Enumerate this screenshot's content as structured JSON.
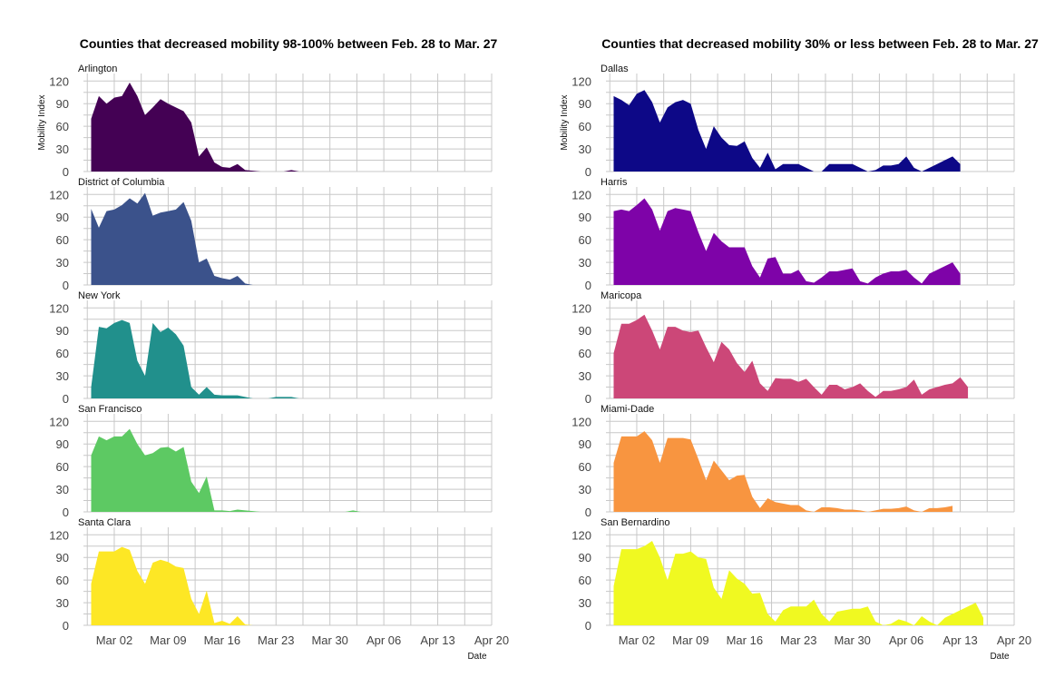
{
  "chart_data": [
    {
      "type": "area",
      "title": "Counties that decreased mobility 98-100% between Feb. 28 to Mar. 27",
      "xlabel": "Date",
      "ylabel": "Mobility Index",
      "xlim": [
        "2020-02-27",
        "2020-04-20"
      ],
      "ylim": [
        0,
        130
      ],
      "y_ticks": [
        0,
        30,
        60,
        90,
        120
      ],
      "x_ticks": [
        "2020-03-02",
        "2020-03-09",
        "2020-03-16",
        "2020-03-23",
        "2020-03-30",
        "2020-04-06",
        "2020-04-13",
        "2020-04-20"
      ],
      "x_tick_labels": [
        "Mar 02",
        "Mar 09",
        "Mar 16",
        "Mar 23",
        "Mar 30",
        "Apr 06",
        "Apr 13",
        "Apr 20"
      ],
      "start_date": "2020-02-28",
      "series": [
        {
          "name": "Arlington",
          "color": "#440154",
          "values": [
            70,
            100,
            90,
            98,
            100,
            118,
            100,
            75,
            85,
            96,
            90,
            85,
            80,
            65,
            20,
            32,
            12,
            6,
            5,
            10,
            2,
            1,
            0,
            0,
            0,
            0,
            2,
            0,
            0,
            0,
            0,
            0,
            0,
            0,
            0,
            0,
            0,
            0,
            0,
            0,
            0,
            0,
            0,
            0,
            0,
            0,
            0,
            0,
            0,
            0,
            0
          ]
        },
        {
          "name": "District of Columbia",
          "color": "#3b528b",
          "values": [
            101,
            76,
            98,
            100,
            106,
            115,
            108,
            122,
            92,
            96,
            98,
            100,
            110,
            85,
            30,
            35,
            12,
            9,
            7,
            12,
            2,
            0,
            0,
            0,
            0,
            0,
            0,
            0,
            0,
            0,
            0,
            0,
            0,
            0,
            0,
            0,
            0,
            0,
            0,
            0,
            0,
            0,
            0,
            0,
            0,
            0,
            0,
            0,
            0,
            0,
            0
          ]
        },
        {
          "name": "New York",
          "color": "#21908c",
          "values": [
            15,
            95,
            93,
            100,
            104,
            100,
            50,
            30,
            100,
            88,
            94,
            85,
            70,
            15,
            5,
            15,
            5,
            4,
            4,
            4,
            2,
            0,
            0,
            0,
            2,
            2,
            2,
            0,
            0,
            0,
            0,
            0,
            0,
            0,
            0,
            0,
            0,
            0,
            0,
            0,
            0,
            0,
            0,
            0,
            0,
            0,
            0,
            0,
            0,
            0,
            0
          ]
        },
        {
          "name": "San Francisco",
          "color": "#5dc963",
          "values": [
            75,
            100,
            95,
            100,
            100,
            110,
            90,
            75,
            78,
            85,
            86,
            80,
            86,
            40,
            25,
            47,
            2,
            2,
            1,
            3,
            2,
            1,
            0,
            0,
            0,
            0,
            0,
            0,
            0,
            0,
            0,
            0,
            0,
            0,
            2,
            0,
            0,
            0,
            0,
            0,
            0,
            0,
            0,
            0,
            0,
            0,
            0,
            0,
            0,
            0,
            0
          ]
        },
        {
          "name": "Santa Clara",
          "color": "#fde725",
          "values": [
            55,
            98,
            98,
            98,
            104,
            100,
            72,
            55,
            83,
            87,
            84,
            78,
            76,
            35,
            15,
            46,
            3,
            6,
            2,
            12,
            1,
            0,
            0,
            0,
            0,
            0,
            0,
            0,
            0,
            0,
            0,
            0,
            0,
            0,
            0,
            0,
            0,
            0,
            0,
            0,
            0,
            0,
            0,
            0,
            0,
            0,
            0,
            0,
            0,
            0,
            0
          ]
        }
      ]
    },
    {
      "type": "area",
      "title": "Counties that decreased mobility 30% or less between Feb. 28 to Mar. 27",
      "xlabel": "Date",
      "ylabel": "Mobility Index",
      "xlim": [
        "2020-02-27",
        "2020-04-20"
      ],
      "ylim": [
        0,
        130
      ],
      "y_ticks": [
        0,
        30,
        60,
        90,
        120
      ],
      "x_ticks": [
        "2020-03-02",
        "2020-03-09",
        "2020-03-16",
        "2020-03-23",
        "2020-03-30",
        "2020-04-06",
        "2020-04-13",
        "2020-04-20"
      ],
      "x_tick_labels": [
        "Mar 02",
        "Mar 09",
        "Mar 16",
        "Mar 23",
        "Mar 30",
        "Apr 06",
        "Apr 13",
        "Apr 20"
      ],
      "start_date": "2020-02-28",
      "series": [
        {
          "name": "Dallas",
          "color": "#0d0887",
          "values": [
            100,
            95,
            88,
            103,
            108,
            92,
            65,
            85,
            92,
            95,
            90,
            55,
            30,
            60,
            45,
            35,
            34,
            40,
            18,
            5,
            25,
            3,
            10,
            10,
            10,
            5,
            0,
            0,
            10,
            10,
            10,
            10,
            5,
            0,
            2,
            8,
            8,
            10,
            20,
            5,
            0,
            5,
            10,
            15,
            20,
            10
          ]
        },
        {
          "name": "Harris",
          "color": "#7e03a8",
          "values": [
            98,
            100,
            98,
            106,
            115,
            100,
            72,
            98,
            102,
            100,
            98,
            70,
            45,
            69,
            58,
            50,
            50,
            50,
            25,
            10,
            35,
            37,
            15,
            15,
            20,
            5,
            3,
            10,
            18,
            18,
            20,
            22,
            5,
            2,
            10,
            15,
            18,
            18,
            20,
            10,
            2,
            15,
            20,
            25,
            30,
            15
          ]
        },
        {
          "name": "Maricopa",
          "color": "#cc4778",
          "values": [
            60,
            99,
            99,
            104,
            111,
            90,
            65,
            95,
            95,
            90,
            88,
            90,
            68,
            48,
            75,
            65,
            47,
            35,
            50,
            20,
            10,
            27,
            26,
            26,
            22,
            26,
            15,
            5,
            18,
            18,
            12,
            15,
            20,
            10,
            2,
            10,
            10,
            12,
            15,
            25,
            5,
            12,
            15,
            18,
            20,
            28,
            15
          ]
        },
        {
          "name": "Miami-Dade",
          "color": "#f89540",
          "values": [
            65,
            100,
            100,
            100,
            107,
            95,
            65,
            98,
            98,
            98,
            96,
            70,
            42,
            68,
            55,
            42,
            48,
            49,
            20,
            5,
            18,
            13,
            11,
            9,
            9,
            2,
            0,
            6,
            6,
            5,
            3,
            3,
            2,
            0,
            2,
            4,
            4,
            5,
            7,
            2,
            0,
            5,
            5,
            6,
            8
          ]
        },
        {
          "name": "San Bernardino",
          "color": "#f0f921",
          "values": [
            52,
            101,
            101,
            101,
            105,
            112,
            90,
            60,
            95,
            95,
            98,
            90,
            88,
            50,
            35,
            73,
            62,
            55,
            42,
            43,
            15,
            5,
            20,
            25,
            25,
            25,
            34,
            15,
            5,
            18,
            20,
            22,
            22,
            25,
            5,
            0,
            2,
            8,
            5,
            0,
            12,
            5,
            0,
            10,
            15,
            20,
            25,
            30,
            10
          ]
        }
      ]
    }
  ]
}
